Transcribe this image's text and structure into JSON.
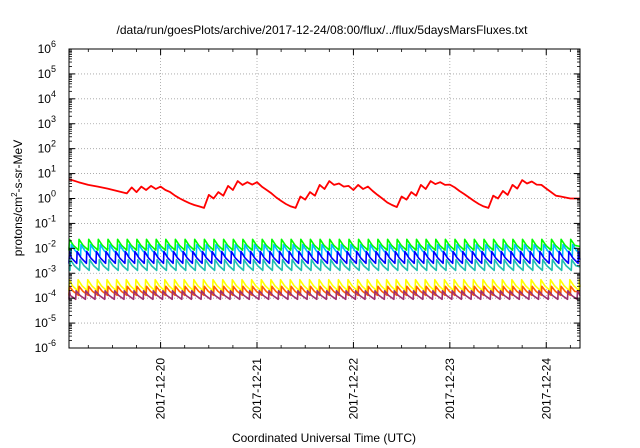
{
  "chart_data": {
    "type": "line",
    "title": "/data/run/goesPlots/archive/2017-12-24/08:00/flux/../flux/5daysMarsFluxes.txt",
    "xlabel": "Coordinated Universal Time (UTC)",
    "ylabel_parts": [
      "protons/cm",
      "2",
      "-s-sr-MeV"
    ],
    "y_scale": "log",
    "ylim_exp": [
      -6,
      6
    ],
    "y_tick_exponents": [
      -6,
      -5,
      -4,
      -3,
      -2,
      -1,
      0,
      1,
      2,
      3,
      4,
      5,
      6
    ],
    "y_tick_base": "10",
    "x_tick_labels": [
      "2017-12-20",
      "2017-12-21",
      "2017-12-22",
      "2017-12-23",
      "2017-12-24"
    ],
    "x_tick_days": [
      20,
      21,
      22,
      23,
      24
    ],
    "xlim_days": [
      19.05,
      24.35
    ],
    "grid": true,
    "legend": "none",
    "series": [
      {
        "color": "#ff0000",
        "x": [
          19.05,
          19.15,
          19.25,
          19.35,
          19.45,
          19.55,
          19.65,
          19.7,
          19.75,
          19.8,
          19.85,
          19.9,
          19.95,
          20.0,
          20.05,
          20.1,
          20.15,
          20.2,
          20.25,
          20.3,
          20.35,
          20.4,
          20.45,
          20.5,
          20.55,
          20.6,
          20.65,
          20.7,
          20.75,
          20.8,
          20.85,
          20.9,
          20.95,
          21.0,
          21.05,
          21.1,
          21.15,
          21.2,
          21.25,
          21.3,
          21.35,
          21.4,
          21.45,
          21.5,
          21.55,
          21.6,
          21.65,
          21.7,
          21.75,
          21.8,
          21.85,
          21.9,
          21.95,
          22.0,
          22.05,
          22.1,
          22.15,
          22.2,
          22.25,
          22.3,
          22.35,
          22.4,
          22.45,
          22.5,
          22.55,
          22.6,
          22.65,
          22.7,
          22.75,
          22.8,
          22.85,
          22.9,
          22.95,
          23.0,
          23.05,
          23.1,
          23.15,
          23.2,
          23.25,
          23.3,
          23.35,
          23.4,
          23.45,
          23.5,
          23.55,
          23.6,
          23.65,
          23.7,
          23.75,
          23.8,
          23.85,
          23.9,
          23.95,
          24.0,
          24.05,
          24.1,
          24.15,
          24.2,
          24.25,
          24.3,
          24.35
        ],
        "y": [
          6.0,
          4.5,
          3.5,
          3.0,
          2.5,
          2.0,
          1.6,
          2.8,
          1.8,
          3.0,
          2.2,
          3.2,
          2.4,
          3.0,
          2.2,
          1.8,
          1.3,
          1.0,
          0.8,
          0.65,
          0.55,
          0.48,
          0.42,
          1.4,
          1.0,
          1.8,
          1.3,
          3.2,
          2.2,
          5.0,
          3.5,
          4.5,
          3.6,
          4.5,
          3.0,
          2.2,
          1.6,
          1.1,
          0.8,
          0.6,
          0.48,
          0.42,
          1.2,
          0.9,
          1.8,
          1.3,
          3.5,
          2.4,
          5.0,
          3.5,
          4.0,
          3.0,
          3.2,
          2.2,
          3.5,
          2.4,
          3.0,
          2.0,
          1.4,
          1.0,
          0.7,
          0.55,
          0.45,
          1.2,
          0.9,
          1.8,
          1.3,
          3.5,
          2.4,
          5.0,
          3.8,
          4.5,
          3.5,
          3.6,
          2.8,
          2.0,
          1.5,
          1.1,
          0.8,
          0.6,
          0.48,
          0.42,
          1.3,
          1.0,
          2.0,
          1.4,
          3.5,
          2.5,
          5.5,
          4.0,
          4.8,
          3.6,
          3.5,
          2.5,
          1.8,
          1.3,
          1.2,
          1.1,
          1.0,
          1.0,
          1.0
        ]
      },
      {
        "color": "#00ff00",
        "pulse": {
          "start": 19.05,
          "period": 0.1,
          "peak": 0.023,
          "trough": 0.0085
        }
      },
      {
        "color": "#00bfff",
        "pulse": {
          "start": 19.07,
          "period": 0.1,
          "peak": 0.014,
          "trough": 0.005
        }
      },
      {
        "color": "#0000ff",
        "pulse": {
          "start": 19.03,
          "period": 0.1,
          "peak": 0.0075,
          "trough": 0.0025
        }
      },
      {
        "color": "#20c0b0",
        "pulse": {
          "start": 19.06,
          "period": 0.1,
          "peak": 0.0035,
          "trough": 0.0013
        }
      },
      {
        "color": "#ffff00",
        "pulse": {
          "start": 19.04,
          "period": 0.1,
          "peak": 0.00055,
          "trough": 0.0002
        }
      },
      {
        "color": "#ff6000",
        "pulse": {
          "start": 19.05,
          "period": 0.1,
          "peak": 0.0003,
          "trough": 0.00013
        }
      },
      {
        "color": "#a03070",
        "pulse": {
          "start": 19.02,
          "period": 0.1,
          "peak": 0.0002,
          "trough": 9e-05
        }
      }
    ]
  }
}
